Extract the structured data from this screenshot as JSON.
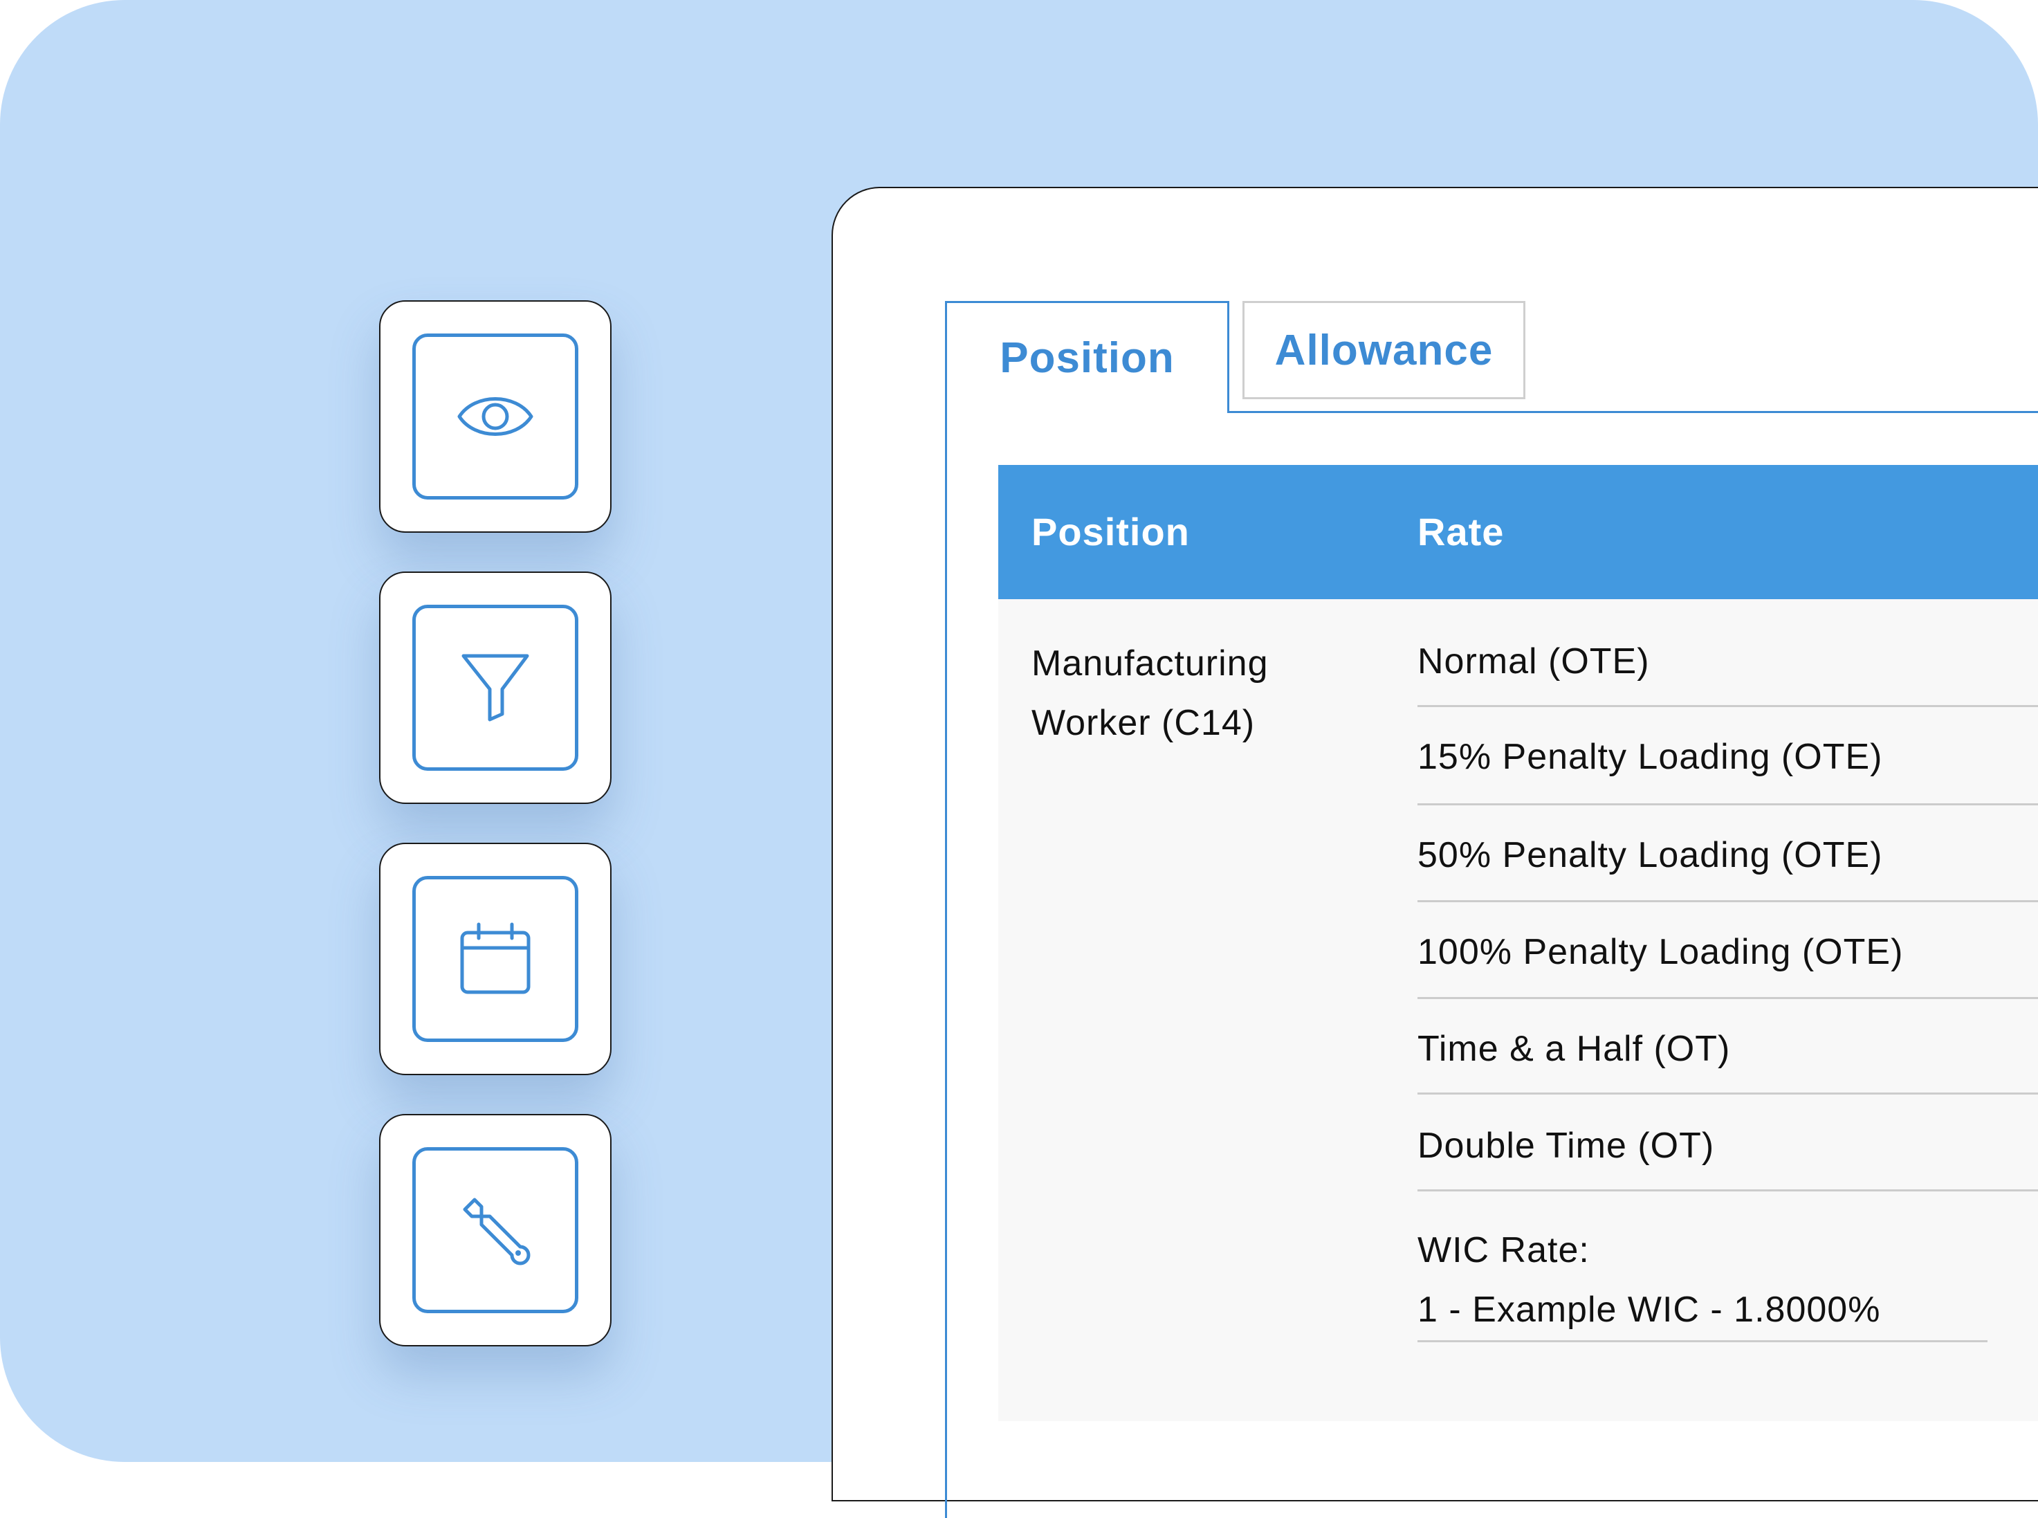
{
  "tools": [
    {
      "name": "view",
      "icon": "eye-icon"
    },
    {
      "name": "filter",
      "icon": "funnel-icon"
    },
    {
      "name": "calendar",
      "icon": "calendar-icon"
    },
    {
      "name": "settings",
      "icon": "wrench-icon"
    }
  ],
  "tabs": {
    "position_label": "Position",
    "allowance_label": "Allowance",
    "active": "Position"
  },
  "table": {
    "headers": {
      "position": "Position",
      "rate": "Rate"
    },
    "position_line1": "Manufacturing",
    "position_line2": "Worker (C14)",
    "rates": [
      "Normal (OTE)",
      "15% Penalty Loading (OTE)",
      "50% Penalty Loading (OTE)",
      "100% Penalty Loading (OTE)",
      "Time & a Half (OT)",
      "Double Time (OT)"
    ],
    "wic_label": "WIC Rate:",
    "wic_value": "1 - Example WIC - 1.8000%"
  },
  "colors": {
    "background": "#bfdbf8",
    "accent": "#3d8bd4",
    "header": "#4399e0"
  }
}
